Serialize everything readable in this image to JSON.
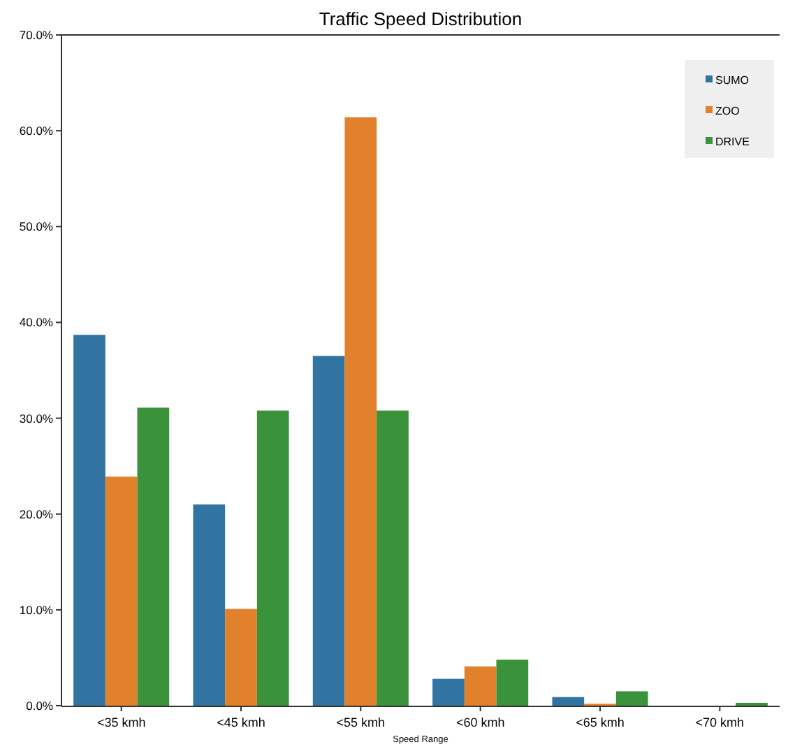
{
  "chart_data": {
    "type": "bar",
    "title": "Traffic Speed Distribution",
    "xlabel": "Speed Range",
    "categories": [
      "<35 kmh",
      "<45 kmh",
      "<55 kmh",
      "<60 kmh",
      "<65 kmh",
      "<70 kmh"
    ],
    "series": [
      {
        "name": "SUMO",
        "color": "#3274a1",
        "values": [
          38.7,
          21.0,
          36.5,
          2.8,
          0.9,
          0
        ]
      },
      {
        "name": "ZOO",
        "color": "#e1812c",
        "values": [
          23.9,
          10.1,
          61.4,
          4.1,
          0.2,
          0
        ]
      },
      {
        "name": "DRIVE",
        "color": "#3a923a",
        "values": [
          31.1,
          30.8,
          30.8,
          4.8,
          1.5,
          0.3
        ]
      }
    ],
    "ylim": [
      0,
      70
    ],
    "yticks": [
      {
        "value": 0,
        "label": "0.0%"
      },
      {
        "value": 10,
        "label": "10.0%"
      },
      {
        "value": 20,
        "label": "20.0%"
      },
      {
        "value": 30,
        "label": "30.0%"
      },
      {
        "value": 40,
        "label": "40.0%"
      },
      {
        "value": 50,
        "label": "50.0%"
      },
      {
        "value": 60,
        "label": "60.0%"
      },
      {
        "value": 70,
        "label": "70.0%"
      }
    ],
    "grid": false,
    "legend": "top right"
  }
}
